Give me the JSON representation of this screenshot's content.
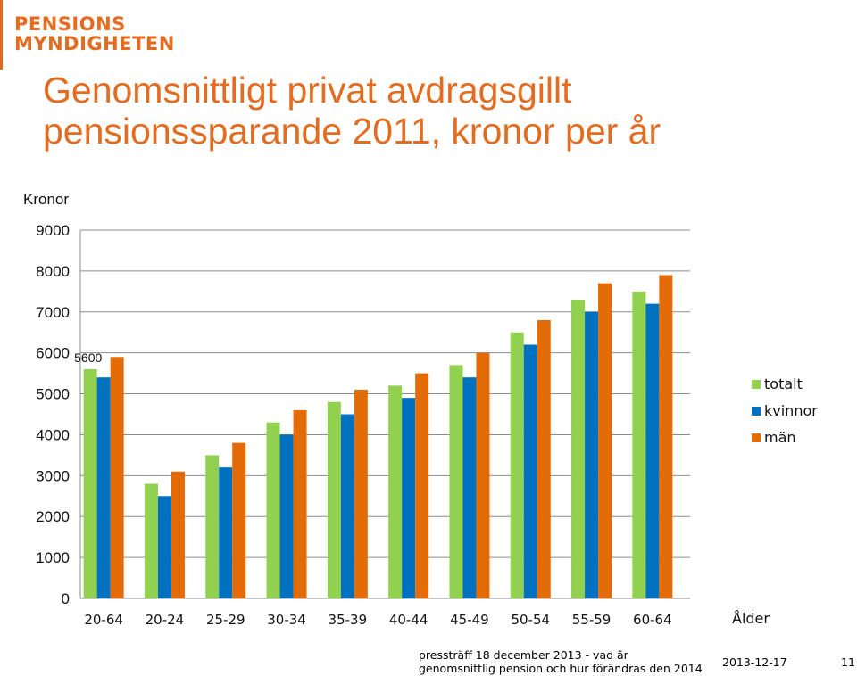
{
  "logo": {
    "line1": "PENSIONS",
    "line2": "MYNDIGHETEN",
    "color": "#e36c21"
  },
  "footer": {
    "text": "pressträff 18 december 2013 - vad är genomsnittlig pension och hur förändras den 2014",
    "date": "2013-12-17",
    "page": "11"
  },
  "chart_data": {
    "type": "bar",
    "title": "Genomsnittligt privat avdragsgillt pensionssparande 2011, kronor per år",
    "ylabel": "Kronor",
    "xlabel": "Ålder",
    "ylim": [
      0,
      9000
    ],
    "yticks": [
      0,
      1000,
      2000,
      3000,
      4000,
      5000,
      6000,
      7000,
      8000,
      9000
    ],
    "grid": true,
    "legend_position": "right",
    "categories": [
      "20-64",
      "20-24",
      "25-29",
      "30-34",
      "35-39",
      "40-44",
      "45-49",
      "50-54",
      "55-59",
      "60-64"
    ],
    "series": [
      {
        "name": "totalt",
        "color": "#92d050",
        "values": [
          5600,
          2800,
          3500,
          4300,
          4800,
          5200,
          5700,
          6500,
          7300,
          7500
        ]
      },
      {
        "name": "kvinnor",
        "color": "#0070c0",
        "values": [
          5400,
          2500,
          3200,
          4000,
          4500,
          4900,
          5400,
          6200,
          7000,
          7200
        ]
      },
      {
        "name": "män",
        "color": "#e36c09",
        "values": [
          5900,
          3100,
          3800,
          4600,
          5100,
          5500,
          6000,
          6800,
          7700,
          7900
        ]
      }
    ],
    "annotations": [
      {
        "category": "20-64",
        "series": "totalt",
        "text": "5600"
      }
    ]
  }
}
